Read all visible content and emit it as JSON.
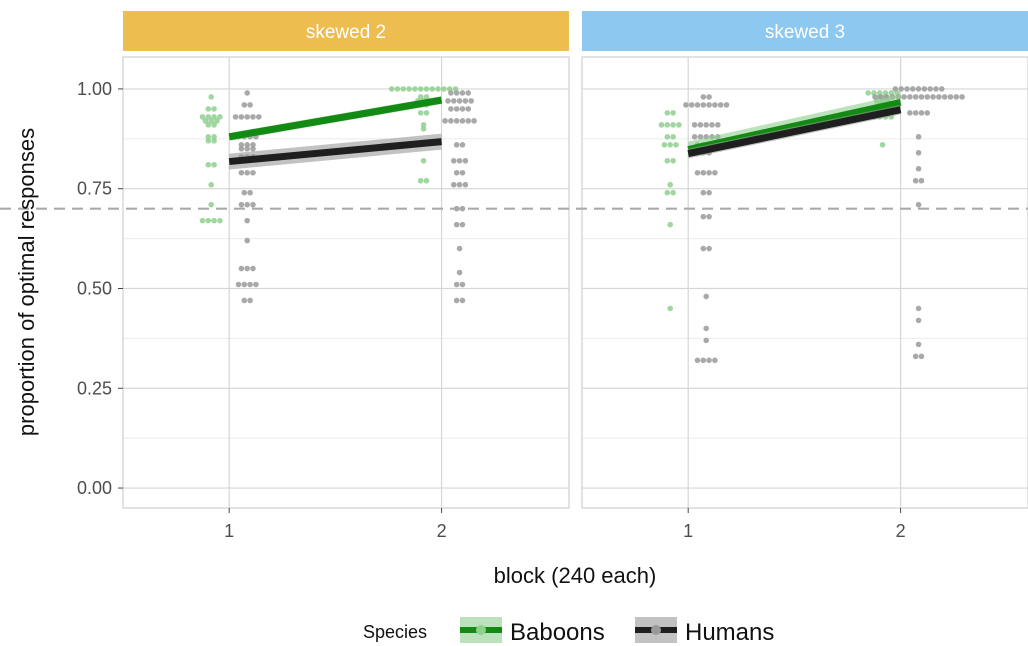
{
  "chart_data": {
    "type": "scatter",
    "title": "",
    "xlabel": "block (240 each)",
    "ylabel": "proportion of optimal responses",
    "x_ticks": [
      "1",
      "2"
    ],
    "y_ticks": [
      "0.00",
      "0.25",
      "0.50",
      "0.75",
      "1.00"
    ],
    "ylim": [
      -0.05,
      1.08
    ],
    "xlim": [
      0.5,
      2.6
    ],
    "reference_line": {
      "y": 0.7,
      "style": "dashed"
    },
    "legend": {
      "title": "Species",
      "position": "bottom",
      "entries": [
        {
          "label": "Baboons",
          "color": "#1a8a1a"
        },
        {
          "label": "Humans",
          "color": "#222222"
        }
      ]
    },
    "colors": {
      "baboons_line": "#138a13",
      "baboons_points": "#8fcf8f",
      "humans_line": "#1f1f1f",
      "humans_points": "#9a9a9a",
      "strip_left": "#eebd4f",
      "strip_right": "#8cc8ef",
      "reference_line": "#aaaaaa"
    },
    "panels": [
      {
        "label": "skewed 2",
        "fits": [
          {
            "species": "Baboons",
            "x": [
              1,
              2
            ],
            "y": [
              0.88,
              0.972
            ],
            "ci": 0.01
          },
          {
            "species": "Humans",
            "x": [
              1,
              2
            ],
            "y": [
              0.818,
              0.868
            ],
            "ci": 0.02
          }
        ],
        "points": {
          "Baboons": {
            "1": [
              0.98,
              0.95,
              0.95,
              0.93,
              0.93,
              0.93,
              0.93,
              0.92,
              0.92,
              0.92,
              0.91,
              0.91,
              0.88,
              0.88,
              0.87,
              0.87,
              0.81,
              0.81,
              0.76,
              0.71,
              0.67,
              0.67,
              0.67,
              0.67
            ],
            "2": [
              1.0,
              1.0,
              1.0,
              1.0,
              1.0,
              1.0,
              1.0,
              1.0,
              1.0,
              1.0,
              1.0,
              1.0,
              0.98,
              0.98,
              0.97,
              0.97,
              0.97,
              0.96,
              0.96,
              0.94,
              0.94,
              0.91,
              0.9,
              0.82,
              0.77,
              0.77
            ]
          },
          "Humans": {
            "1": [
              0.99,
              0.96,
              0.96,
              0.93,
              0.93,
              0.93,
              0.93,
              0.93,
              0.88,
              0.88,
              0.88,
              0.88,
              0.86,
              0.86,
              0.86,
              0.85,
              0.85,
              0.85,
              0.83,
              0.83,
              0.83,
              0.79,
              0.79,
              0.79,
              0.74,
              0.74,
              0.71,
              0.71,
              0.71,
              0.67,
              0.62,
              0.55,
              0.55,
              0.55,
              0.51,
              0.51,
              0.51,
              0.51,
              0.47,
              0.47
            ],
            "2": [
              0.99,
              0.99,
              0.99,
              0.99,
              0.97,
              0.97,
              0.97,
              0.97,
              0.97,
              0.95,
              0.95,
              0.95,
              0.95,
              0.92,
              0.92,
              0.92,
              0.92,
              0.92,
              0.92,
              0.86,
              0.86,
              0.82,
              0.82,
              0.82,
              0.79,
              0.79,
              0.76,
              0.76,
              0.76,
              0.7,
              0.7,
              0.66,
              0.66,
              0.6,
              0.54,
              0.51,
              0.51,
              0.47,
              0.47
            ]
          }
        }
      },
      {
        "label": "skewed 3",
        "fits": [
          {
            "species": "Baboons",
            "x": [
              1,
              2
            ],
            "y": [
              0.848,
              0.966
            ],
            "ci": 0.02
          },
          {
            "species": "Humans",
            "x": [
              1,
              2
            ],
            "y": [
              0.838,
              0.948
            ],
            "ci": 0.012
          }
        ],
        "points": {
          "Baboons": {
            "1": [
              0.94,
              0.94,
              0.91,
              0.91,
              0.91,
              0.91,
              0.88,
              0.88,
              0.86,
              0.86,
              0.86,
              0.82,
              0.82,
              0.76,
              0.74,
              0.74,
              0.66,
              0.45
            ],
            "2": [
              0.99,
              0.99,
              0.99,
              0.99,
              0.99,
              0.99,
              0.98,
              0.98,
              0.97,
              0.97,
              0.97,
              0.96,
              0.96,
              0.95,
              0.95,
              0.93,
              0.93,
              0.93,
              0.93,
              0.86
            ]
          },
          "Humans": {
            "1": [
              0.98,
              0.98,
              0.96,
              0.96,
              0.96,
              0.96,
              0.96,
              0.96,
              0.96,
              0.96,
              0.91,
              0.91,
              0.91,
              0.91,
              0.91,
              0.88,
              0.88,
              0.88,
              0.88,
              0.88,
              0.86,
              0.86,
              0.86,
              0.86,
              0.84,
              0.84,
              0.79,
              0.79,
              0.79,
              0.79,
              0.74,
              0.74,
              0.68,
              0.68,
              0.6,
              0.6,
              0.48,
              0.4,
              0.37,
              0.32,
              0.32,
              0.32,
              0.32
            ],
            "2": [
              1.0,
              1.0,
              1.0,
              1.0,
              1.0,
              1.0,
              1.0,
              1.0,
              1.0,
              0.98,
              0.98,
              0.98,
              0.98,
              0.98,
              0.98,
              0.98,
              0.98,
              0.98,
              0.98,
              0.98,
              0.98,
              0.98,
              0.98,
              0.98,
              0.98,
              0.94,
              0.94,
              0.94,
              0.94,
              0.88,
              0.84,
              0.8,
              0.77,
              0.77,
              0.71,
              0.45,
              0.42,
              0.36,
              0.33,
              0.33
            ]
          }
        }
      }
    ]
  }
}
